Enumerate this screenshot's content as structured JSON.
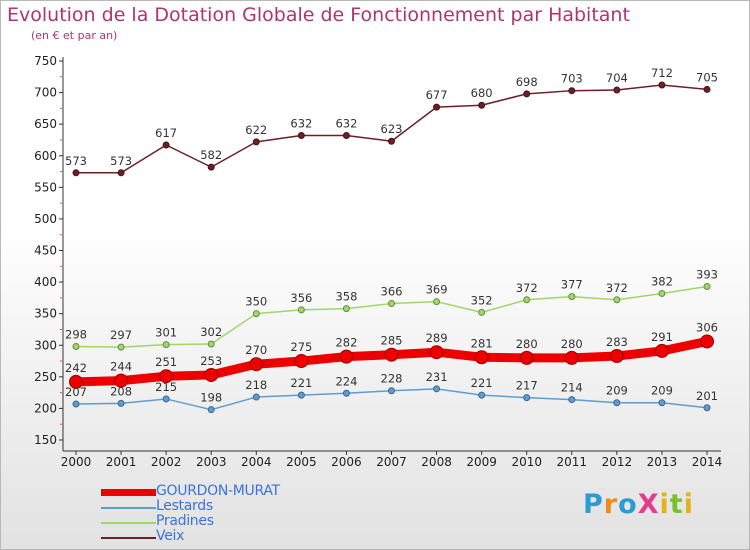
{
  "title": "Evolution de la Dotation Globale de Fonctionnement par Habitant",
  "subtitle": "(en € et par an)",
  "logo": {
    "text": "ProXiti",
    "letter_colors": [
      "#2a9bd3",
      "#f08a1c",
      "#2a9bd3",
      "#e63a8a",
      "#e5b21a",
      "#7bbf2a",
      "#e5b21a"
    ]
  },
  "chart_data": {
    "type": "line",
    "title": "Evolution de la Dotation Globale de Fonctionnement par Habitant",
    "subtitle": "(en € et par an)",
    "x": [
      "2000",
      "2001",
      "2002",
      "2003",
      "2004",
      "2005",
      "2006",
      "2007",
      "2008",
      "2009",
      "2010",
      "2011",
      "2012",
      "2013",
      "2014"
    ],
    "ylim": [
      150,
      750
    ],
    "yticks": [
      150,
      200,
      250,
      300,
      350,
      400,
      450,
      500,
      550,
      600,
      650,
      700,
      750
    ],
    "grid": false,
    "legend": "bottom-left",
    "series": [
      {
        "name": "GOURDON-MURAT",
        "color": "#ee0000",
        "emphasis": true,
        "values": [
          242,
          244,
          251,
          253,
          270,
          275,
          282,
          285,
          289,
          281,
          280,
          280,
          283,
          291,
          306
        ]
      },
      {
        "name": "Lestards",
        "color": "#5e9dd2",
        "emphasis": false,
        "values": [
          207,
          208,
          215,
          198,
          218,
          221,
          224,
          228,
          231,
          221,
          217,
          214,
          209,
          209,
          201
        ]
      },
      {
        "name": "Pradines",
        "color": "#9dd869",
        "emphasis": false,
        "values": [
          298,
          297,
          301,
          302,
          350,
          356,
          358,
          366,
          369,
          352,
          372,
          377,
          372,
          382,
          393
        ]
      },
      {
        "name": "Veix",
        "color": "#6b1f26",
        "emphasis": false,
        "values": [
          573,
          573,
          617,
          582,
          622,
          632,
          632,
          623,
          677,
          680,
          698,
          703,
          704,
          712,
          705
        ]
      }
    ]
  }
}
